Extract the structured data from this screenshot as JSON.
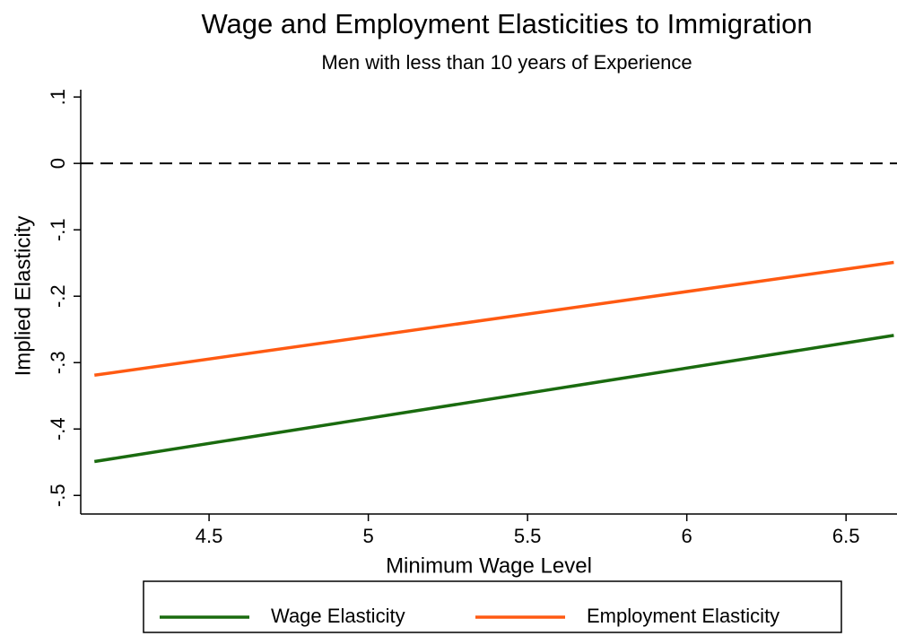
{
  "chart_data": {
    "type": "line",
    "title": "Wage and Employment Elasticities to Immigration",
    "subtitle": "Men with less than 10 years of Experience",
    "x_label": "Minimum Wage Level",
    "y_label": "Implied Elasticity",
    "x": [
      4.14,
      6.65
    ],
    "series": [
      {
        "name": "Wage Elasticity",
        "color": "#1a6b0f",
        "values": [
          -0.449,
          -0.259
        ]
      },
      {
        "name": "Employment Elasticity",
        "color": "#ff5a12",
        "values": [
          -0.319,
          -0.149
        ]
      }
    ],
    "xlim": [
      4.097,
      6.66
    ],
    "ylim": [
      -0.528,
      0.111
    ],
    "xticks": [
      4.5,
      5,
      5.5,
      6,
      6.5
    ],
    "yticks": [
      {
        "value": -0.5,
        "label": "-.5"
      },
      {
        "value": -0.4,
        "label": "-.4"
      },
      {
        "value": -0.3,
        "label": "-.3"
      },
      {
        "value": -0.2,
        "label": "-.2"
      },
      {
        "value": -0.1,
        "label": "-.1"
      },
      0,
      {
        "value": 0.1,
        "label": ".1"
      }
    ],
    "reference_line": 0,
    "legend": "bottom"
  }
}
